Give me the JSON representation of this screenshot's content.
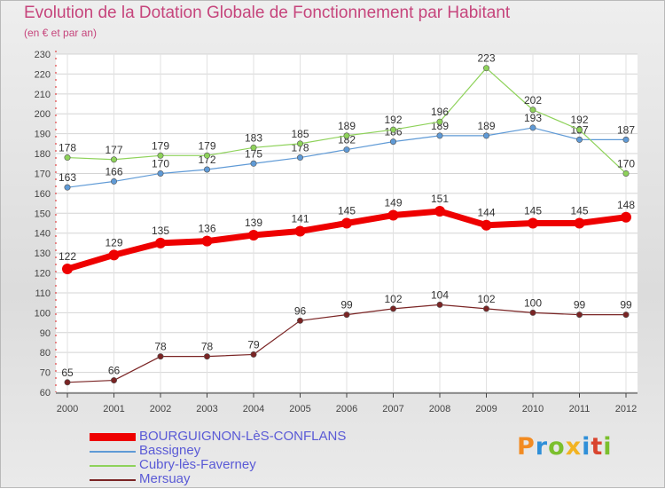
{
  "chart_data": {
    "type": "line",
    "title": "Evolution de la Dotation Globale de Fonctionnement par Habitant",
    "subtitle": "(en € et par an)",
    "xlabel": "",
    "ylabel": "",
    "x": [
      "2000",
      "2001",
      "2002",
      "2003",
      "2004",
      "2005",
      "2006",
      "2007",
      "2008",
      "2009",
      "2010",
      "2011",
      "2012"
    ],
    "ylim": [
      60,
      230
    ],
    "yticks": [
      60,
      70,
      80,
      90,
      100,
      110,
      120,
      130,
      140,
      150,
      160,
      170,
      180,
      190,
      200,
      210,
      220,
      230
    ],
    "grid": true,
    "legend_position": "bottom-left",
    "series": [
      {
        "name": "BOURGUIGNON-LèS-CONFLANS",
        "color": "#ee0000",
        "style": "thick",
        "values": [
          122,
          129,
          135,
          136,
          139,
          141,
          145,
          149,
          151,
          144,
          145,
          145,
          148
        ]
      },
      {
        "name": "Bassigney",
        "color": "#5f9ad6",
        "style": "thin",
        "values": [
          163,
          166,
          170,
          172,
          175,
          178,
          182,
          186,
          189,
          189,
          193,
          187,
          187
        ]
      },
      {
        "name": "Cubry-lès-Faverney",
        "color": "#8ed25a",
        "style": "thin",
        "values": [
          178,
          177,
          179,
          179,
          183,
          185,
          189,
          192,
          196,
          223,
          202,
          192,
          170
        ]
      },
      {
        "name": "Mersuay",
        "color": "#7a2424",
        "style": "thin",
        "values": [
          65,
          66,
          78,
          78,
          79,
          96,
          99,
          102,
          104,
          102,
          100,
          99,
          99
        ]
      }
    ]
  },
  "brand": {
    "letters": [
      "P",
      "r",
      "o",
      "x",
      "i",
      "t",
      "i"
    ]
  }
}
